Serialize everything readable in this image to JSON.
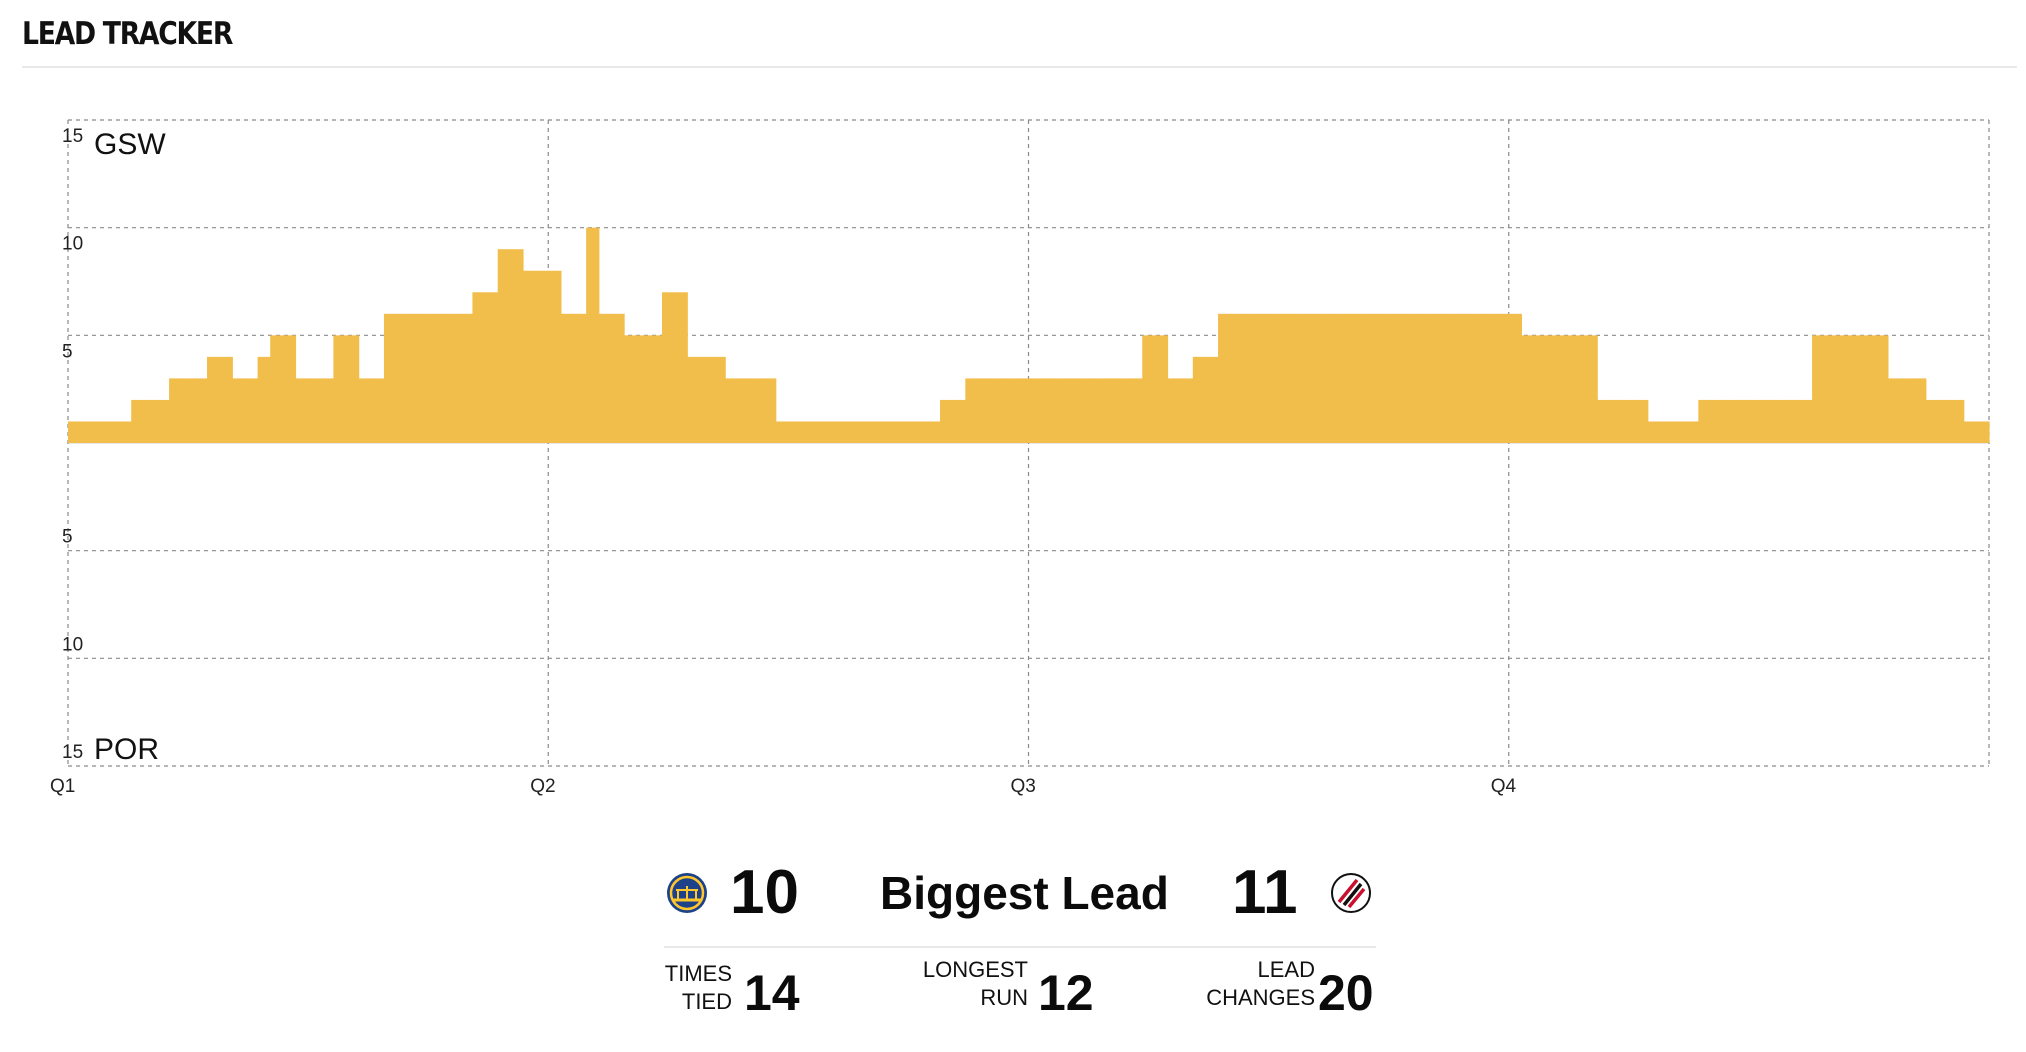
{
  "header": {
    "title": "LEAD TRACKER"
  },
  "colors": {
    "gsw": "#f2be4b",
    "por": "#0c1924",
    "grid": "#8a8a8a"
  },
  "chart_data": {
    "type": "bar",
    "title": "",
    "xlabel": "",
    "ylabel": "",
    "ylim": [
      -15,
      15
    ],
    "grid": true,
    "y_ticks": [
      {
        "value": 15,
        "label": "15"
      },
      {
        "value": 10,
        "label": "10"
      },
      {
        "value": 5,
        "label": "5"
      },
      {
        "value": -5,
        "label": "5"
      },
      {
        "value": -10,
        "label": "10"
      },
      {
        "value": -15,
        "label": "15"
      }
    ],
    "team_labels": {
      "top": "GSW",
      "bottom": "POR"
    },
    "x_ticks": [
      "Q1",
      "Q2",
      "Q3",
      "Q4"
    ],
    "series": [
      {
        "name": "GSW",
        "values": [
          1,
          1,
          1,
          1,
          1,
          2,
          2,
          2,
          3,
          3,
          3,
          4,
          4,
          3,
          3,
          4,
          5,
          5,
          3,
          3,
          3,
          5,
          5,
          3,
          3,
          6,
          6,
          6,
          6,
          6,
          6,
          6,
          7,
          7,
          9,
          9,
          8,
          8,
          8,
          6,
          6,
          10,
          6,
          6,
          5,
          5,
          5,
          7,
          7,
          4,
          4,
          4,
          3,
          3,
          3,
          3,
          1,
          1,
          1,
          1,
          1,
          1,
          1,
          1,
          1,
          1,
          1,
          1,
          1,
          2,
          2,
          3,
          3,
          3,
          3,
          3,
          3,
          3,
          3,
          3,
          3,
          3,
          3,
          3,
          3,
          5,
          5,
          3,
          3,
          4,
          4,
          6,
          6,
          6,
          6,
          6,
          6,
          6,
          6,
          6,
          6,
          6,
          6,
          6,
          6,
          6,
          6,
          6,
          6,
          6,
          6,
          6,
          6,
          6,
          6,
          5,
          5,
          5,
          5,
          5,
          5,
          2,
          2,
          2,
          2,
          1,
          1,
          1,
          1,
          2,
          2,
          2,
          2,
          2,
          2,
          2,
          2,
          2,
          5,
          5,
          5,
          5,
          5,
          5,
          3,
          3,
          3,
          2,
          2,
          2,
          1,
          1
        ]
      }
    ]
  },
  "stats": {
    "gsw_biggest_lead": "10",
    "biggest_lead_label": "Biggest Lead",
    "por_biggest_lead": "11",
    "times_tied_label_1": "TIMES",
    "times_tied_label_2": "TIED",
    "times_tied": "14",
    "longest_run_label_1": "LONGEST",
    "longest_run_label_2": "RUN",
    "longest_run": "12",
    "lead_changes_label_1": "LEAD",
    "lead_changes_label_2": "CHANGES",
    "lead_changes": "20"
  },
  "icons": {
    "gsw_logo": "gsw-logo-icon",
    "por_logo": "por-logo-icon"
  }
}
